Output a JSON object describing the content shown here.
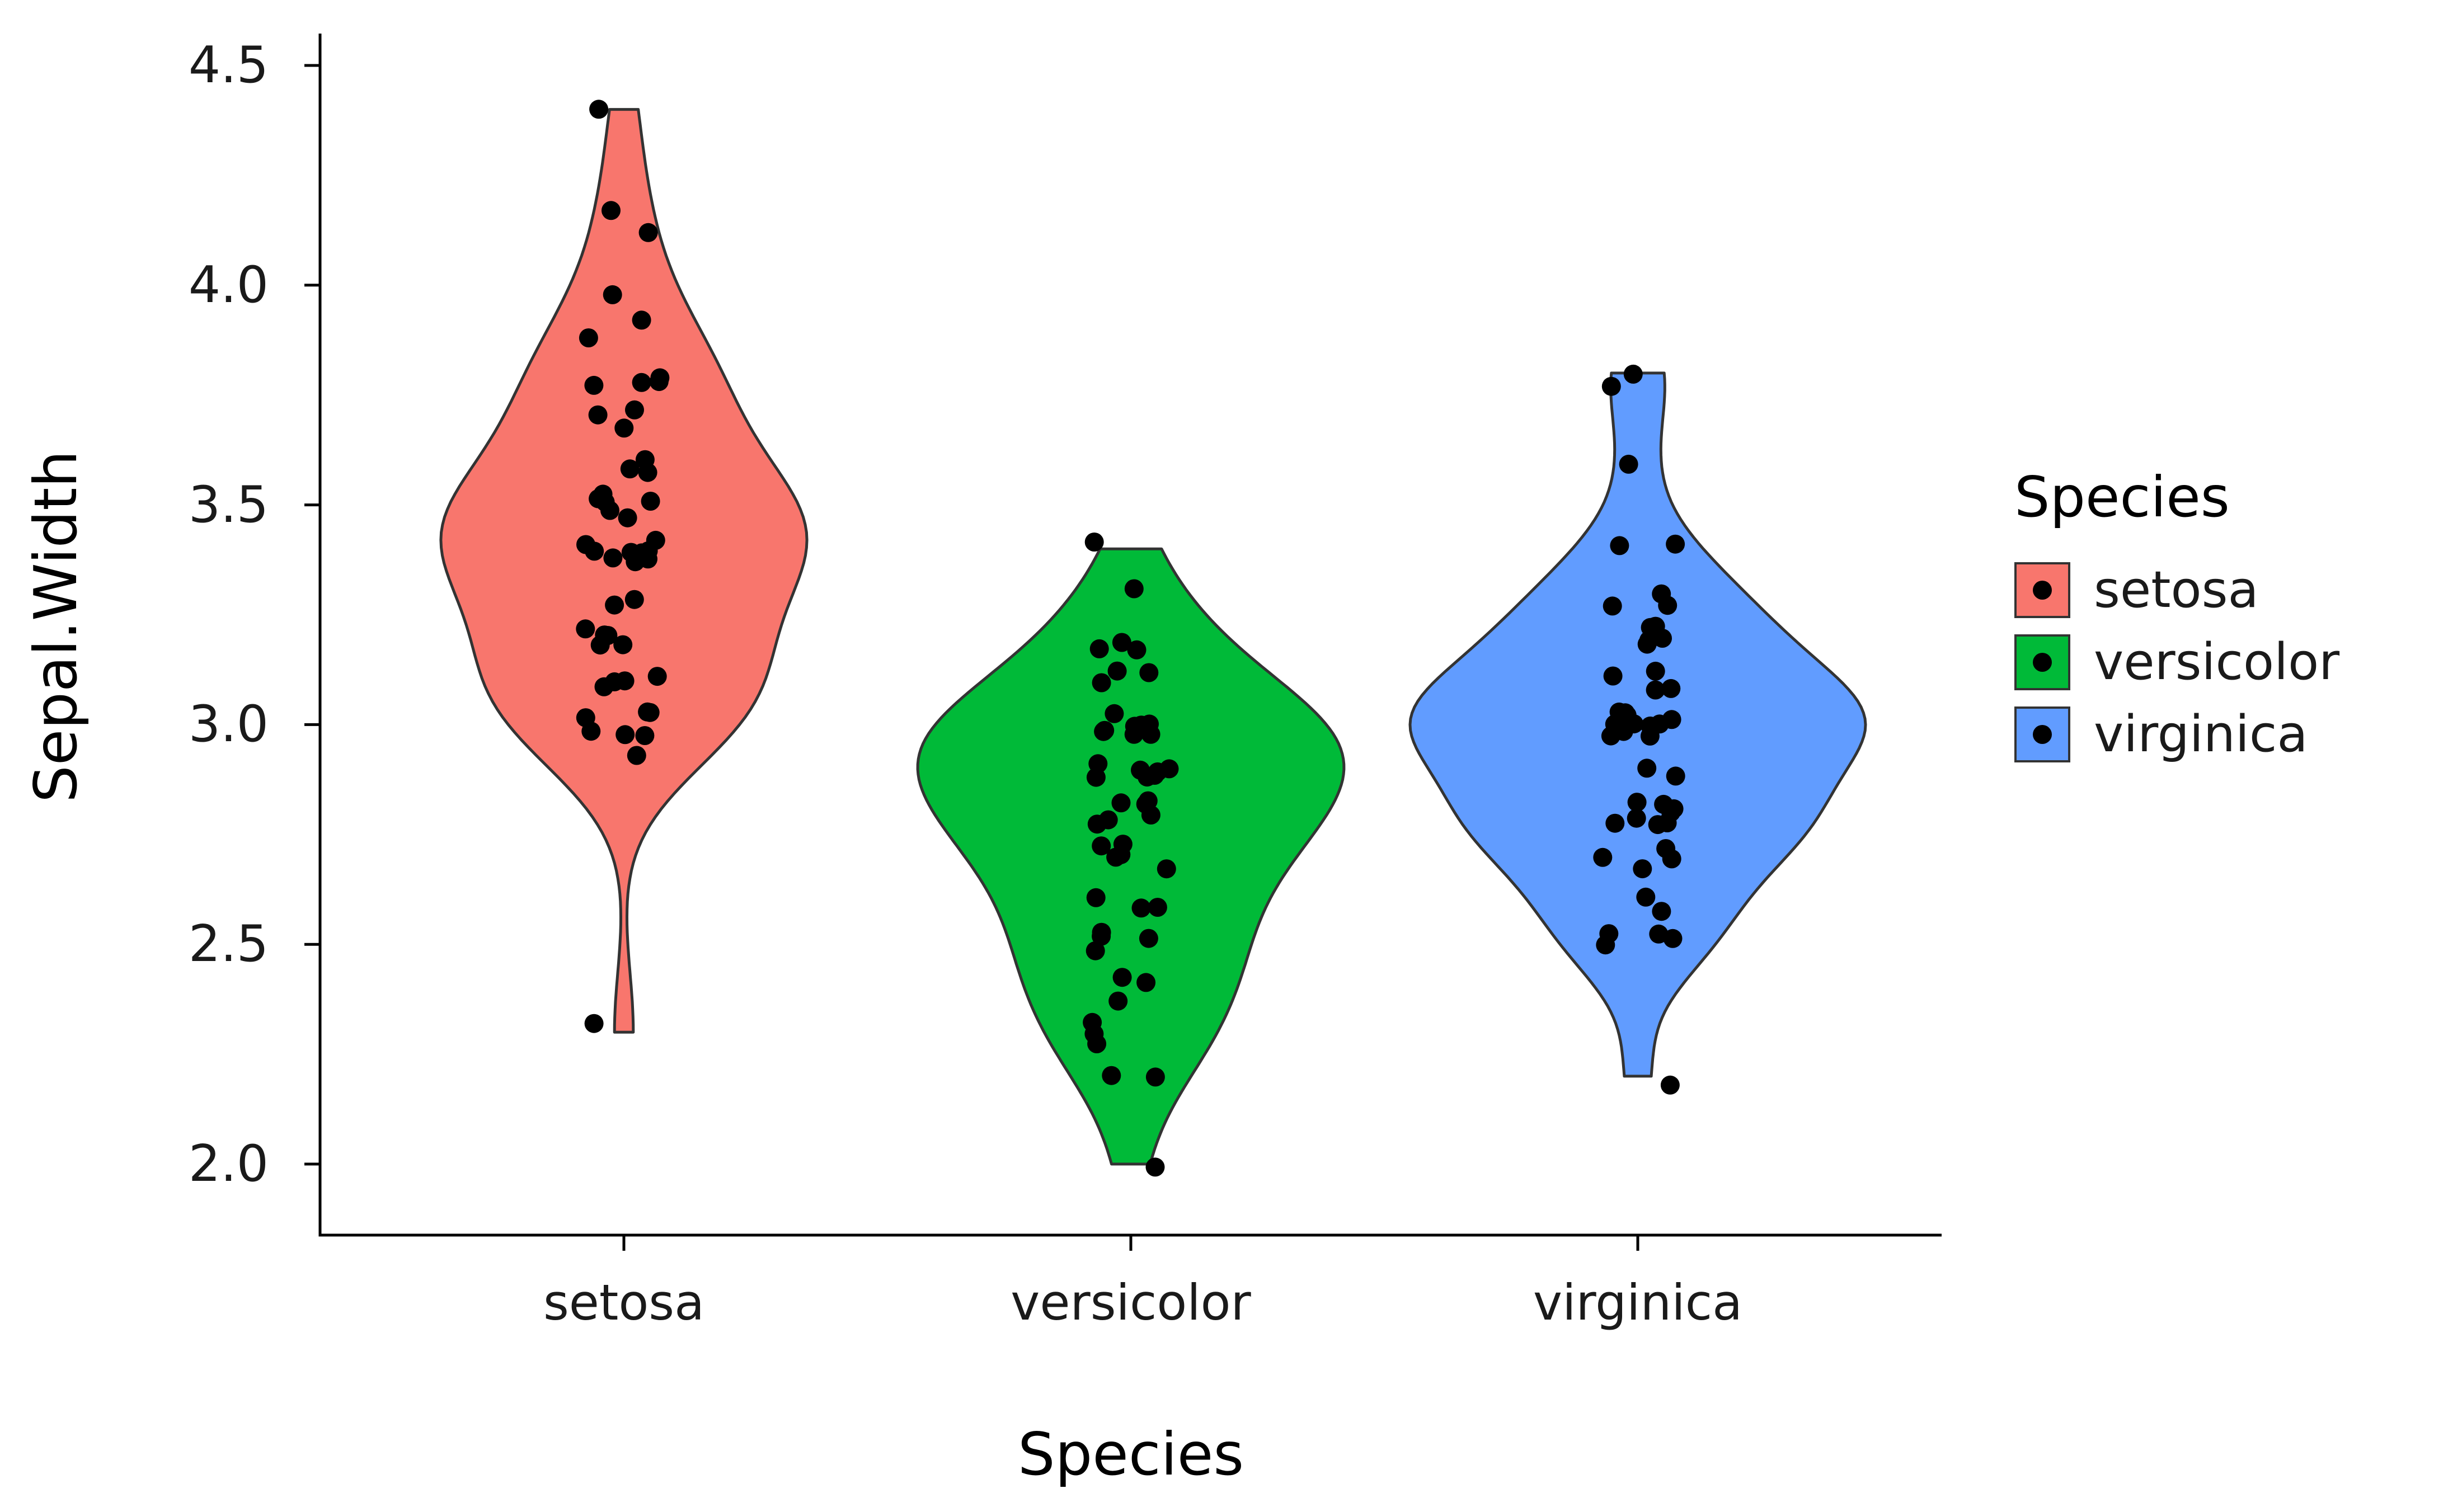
{
  "chart_data": {
    "type": "violin",
    "title": "",
    "xlabel": "Species",
    "ylabel": "Sepal.Width",
    "ylim": [
      2.0,
      4.5
    ],
    "yticks": [
      2.0,
      2.5,
      3.0,
      3.5,
      4.0,
      4.5
    ],
    "ytick_labels": [
      "2.0",
      "2.5",
      "3.0",
      "3.5",
      "4.0",
      "4.5"
    ],
    "categories": [
      "setosa",
      "versicolor",
      "virginica"
    ],
    "grid": "off",
    "background_color": "#FFFFFF",
    "outline_color": "#333333",
    "point_color": "#000000",
    "legend": {
      "title": "Species",
      "position": "right",
      "entries": [
        {
          "label": "setosa",
          "color": "#F8766D"
        },
        {
          "label": "versicolor",
          "color": "#00BA38"
        },
        {
          "label": "virginica",
          "color": "#619CFF"
        }
      ]
    },
    "series": [
      {
        "name": "setosa",
        "color": "#F8766D",
        "values": [
          3.5,
          3.0,
          3.2,
          3.1,
          3.6,
          3.9,
          3.4,
          3.4,
          2.9,
          3.1,
          3.7,
          3.4,
          3.0,
          3.0,
          4.0,
          4.4,
          3.9,
          3.5,
          3.8,
          3.8,
          3.4,
          3.7,
          3.6,
          3.3,
          3.4,
          3.0,
          3.4,
          3.5,
          3.4,
          3.2,
          3.1,
          3.4,
          4.1,
          4.2,
          3.1,
          3.2,
          3.5,
          3.6,
          3.0,
          3.4,
          3.5,
          2.3,
          3.2,
          3.5,
          3.8,
          3.0,
          3.8,
          3.2,
          3.7,
          3.3
        ]
      },
      {
        "name": "versicolor",
        "color": "#00BA38",
        "values": [
          3.2,
          3.2,
          3.1,
          2.3,
          2.8,
          2.8,
          3.3,
          2.4,
          2.9,
          2.7,
          2.0,
          3.0,
          2.2,
          2.9,
          2.9,
          3.1,
          3.0,
          2.7,
          2.2,
          2.5,
          3.2,
          2.8,
          2.5,
          2.8,
          2.9,
          3.0,
          2.8,
          3.0,
          2.9,
          2.6,
          2.4,
          2.4,
          2.7,
          2.7,
          3.0,
          3.4,
          3.1,
          2.3,
          3.0,
          2.5,
          2.6,
          3.0,
          2.6,
          2.3,
          2.7,
          3.0,
          2.9,
          2.9,
          2.5,
          2.8
        ]
      },
      {
        "name": "virginica",
        "color": "#619CFF",
        "values": [
          3.3,
          2.7,
          3.0,
          2.9,
          3.0,
          3.0,
          2.5,
          2.9,
          2.5,
          3.6,
          3.2,
          2.7,
          3.0,
          2.5,
          2.8,
          3.2,
          3.0,
          3.8,
          2.6,
          2.2,
          3.2,
          2.8,
          2.8,
          2.7,
          3.3,
          3.2,
          2.8,
          3.0,
          2.8,
          3.0,
          2.8,
          3.8,
          2.8,
          2.8,
          2.6,
          3.0,
          3.4,
          3.1,
          3.0,
          3.1,
          3.1,
          3.1,
          2.7,
          3.2,
          3.3,
          3.0,
          2.5,
          3.0,
          3.4,
          3.0
        ]
      }
    ]
  }
}
